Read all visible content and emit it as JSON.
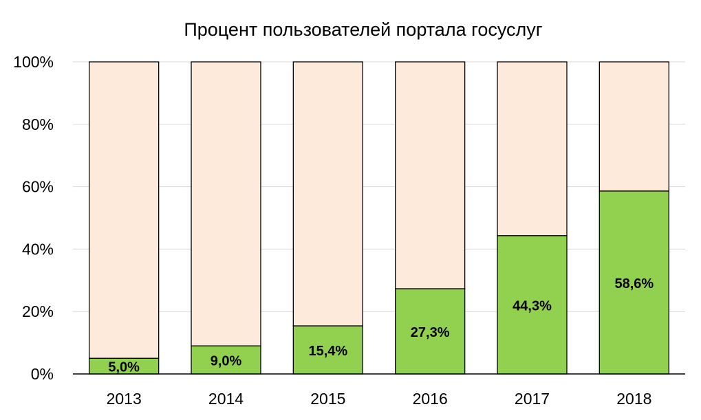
{
  "chart_data": {
    "type": "bar",
    "stacked": true,
    "percent_stacked": true,
    "title": "Процент пользователей портала госуслуг",
    "xlabel": "",
    "ylabel": "",
    "categories": [
      "2013",
      "2014",
      "2015",
      "2016",
      "2017",
      "2018"
    ],
    "values": [
      5.0,
      9.0,
      15.4,
      27.3,
      44.3,
      58.6
    ],
    "data_labels": [
      "5,0%",
      "9,0%",
      "15,4%",
      "27,3%",
      "44,3%",
      "58,6%"
    ],
    "ylim": [
      0,
      100
    ],
    "yticks": [
      0,
      20,
      40,
      60,
      80,
      100
    ],
    "ytick_labels": [
      "0%",
      "20%",
      "40%",
      "60%",
      "80%",
      "100%"
    ],
    "grid": true,
    "legend": "none",
    "colors": {
      "value_fill": "#92d050",
      "remainder_fill": "#fdeada",
      "bar_border": "#000000",
      "grid": "#d9d9d9"
    }
  }
}
